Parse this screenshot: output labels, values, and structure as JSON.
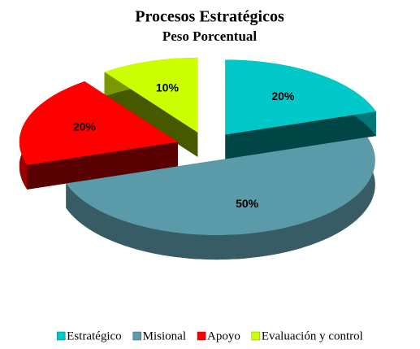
{
  "chart_data": {
    "type": "pie3d",
    "title": "Procesos Estratégicos",
    "subtitle": "Peso Porcentual",
    "categories": [
      "Estratégico",
      "Misional",
      "Apoyo",
      "Evaluación y control"
    ],
    "values": [
      20,
      50,
      20,
      10
    ],
    "value_labels": [
      "20%",
      "50%",
      "20%",
      "10%"
    ],
    "colors": [
      "#00c8c8",
      "#5b9aa8",
      "#ff0000",
      "#ccff00"
    ],
    "legend": "bottom"
  }
}
